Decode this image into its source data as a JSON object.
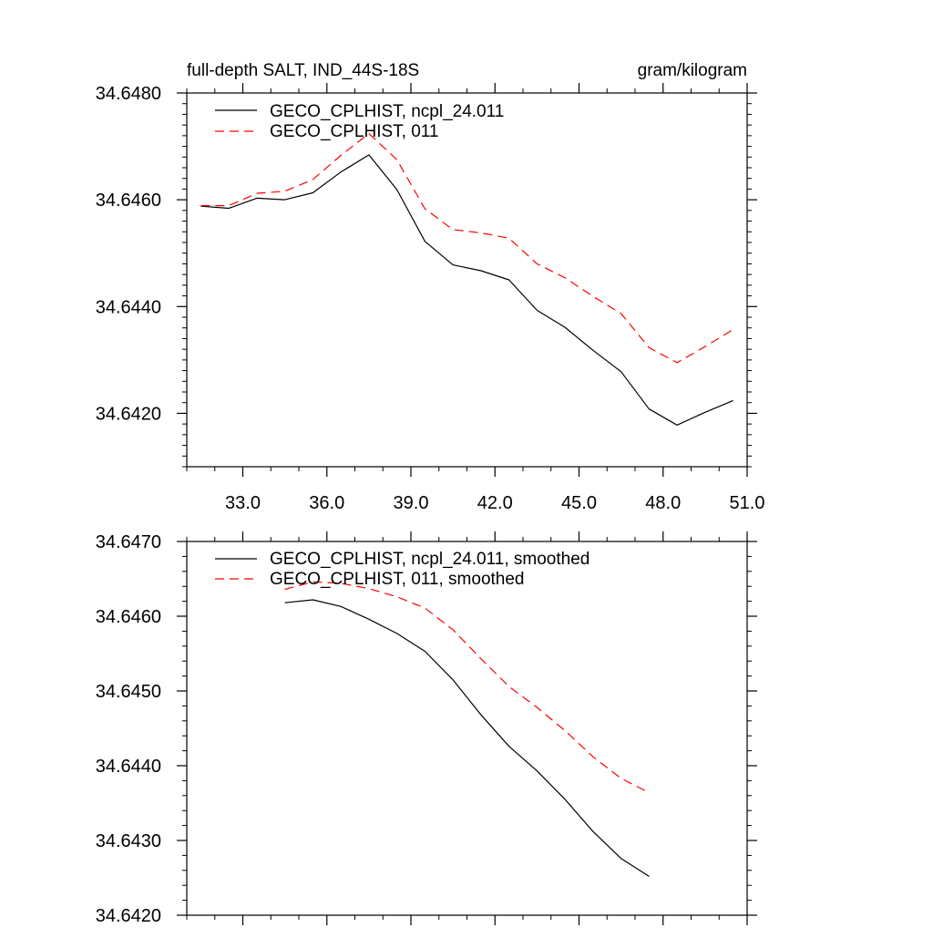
{
  "chart_data": [
    {
      "type": "line",
      "title": "full-depth SALT, IND_44S-18S",
      "units": "gram/kilogram",
      "xlim": [
        31.0,
        51.0
      ],
      "ylim": [
        34.641,
        34.648
      ],
      "x_ticks": [
        33.0,
        36.0,
        39.0,
        42.0,
        45.0,
        48.0,
        51.0
      ],
      "x_tick_labels": [
        "33.0",
        "36.0",
        "39.0",
        "42.0",
        "45.0",
        "48.0",
        "51.0"
      ],
      "y_ticks": [
        34.642,
        34.644,
        34.646,
        34.648
      ],
      "y_tick_labels": [
        "34.6420",
        "34.6440",
        "34.6460",
        "34.6480"
      ],
      "x": [
        31.5,
        32.5,
        33.5,
        34.5,
        35.5,
        36.5,
        37.5,
        38.5,
        39.5,
        40.5,
        41.5,
        42.5,
        43.5,
        44.5,
        45.5,
        46.5,
        47.5,
        48.5,
        49.5,
        50.5
      ],
      "series": [
        {
          "name": "GECO_CPLHIST, ncpl_24.011",
          "color": "#000000",
          "dash": "solid",
          "values": [
            34.64588,
            34.64584,
            34.64603,
            34.646,
            34.64613,
            34.64652,
            34.64684,
            34.64619,
            34.64522,
            34.64478,
            34.64467,
            34.6445,
            34.64393,
            34.64361,
            34.64318,
            34.64278,
            34.64208,
            34.64178,
            34.64202,
            34.64224
          ]
        },
        {
          "name": "GECO_CPLHIST, 011",
          "color": "#ff0000",
          "dash": "dashed",
          "values": [
            34.64589,
            34.64589,
            34.64612,
            34.64616,
            34.64638,
            34.64683,
            34.64724,
            34.64675,
            34.64583,
            34.64544,
            34.64538,
            34.64528,
            34.6448,
            34.64454,
            34.64419,
            34.64387,
            34.64323,
            34.64295,
            34.64325,
            34.64357
          ]
        }
      ],
      "legend_position": "top-left"
    },
    {
      "type": "line",
      "xlim": [
        31.0,
        51.0
      ],
      "ylim": [
        34.642,
        34.647
      ],
      "x_ticks": [
        33.0,
        36.0,
        39.0,
        42.0,
        45.0,
        48.0,
        51.0
      ],
      "y_ticks": [
        34.642,
        34.643,
        34.644,
        34.645,
        34.646,
        34.647
      ],
      "y_tick_labels": [
        "34.6420",
        "34.6430",
        "34.6440",
        "34.6450",
        "34.6460",
        "34.6470"
      ],
      "x": [
        34.5,
        35.5,
        36.5,
        37.5,
        38.5,
        39.5,
        40.5,
        41.5,
        42.5,
        43.5,
        44.5,
        45.5,
        46.5,
        47.5
      ],
      "series": [
        {
          "name": "GECO_CPLHIST, ncpl_24.011, smoothed",
          "color": "#000000",
          "dash": "solid",
          "values": [
            34.64618,
            34.64622,
            34.64613,
            34.64596,
            34.64577,
            34.64553,
            34.64515,
            34.64468,
            34.64426,
            34.64393,
            34.64355,
            34.64312,
            34.64276,
            34.64252
          ]
        },
        {
          "name": "GECO_CPLHIST, 011, smoothed",
          "color": "#ff0000",
          "dash": "dashed",
          "values": [
            34.64636,
            34.64646,
            34.64644,
            34.64637,
            34.64626,
            34.64611,
            34.64582,
            34.64543,
            34.64506,
            34.64478,
            34.64447,
            34.64412,
            34.64383,
            34.64364
          ]
        }
      ],
      "legend_position": "top-left"
    }
  ]
}
